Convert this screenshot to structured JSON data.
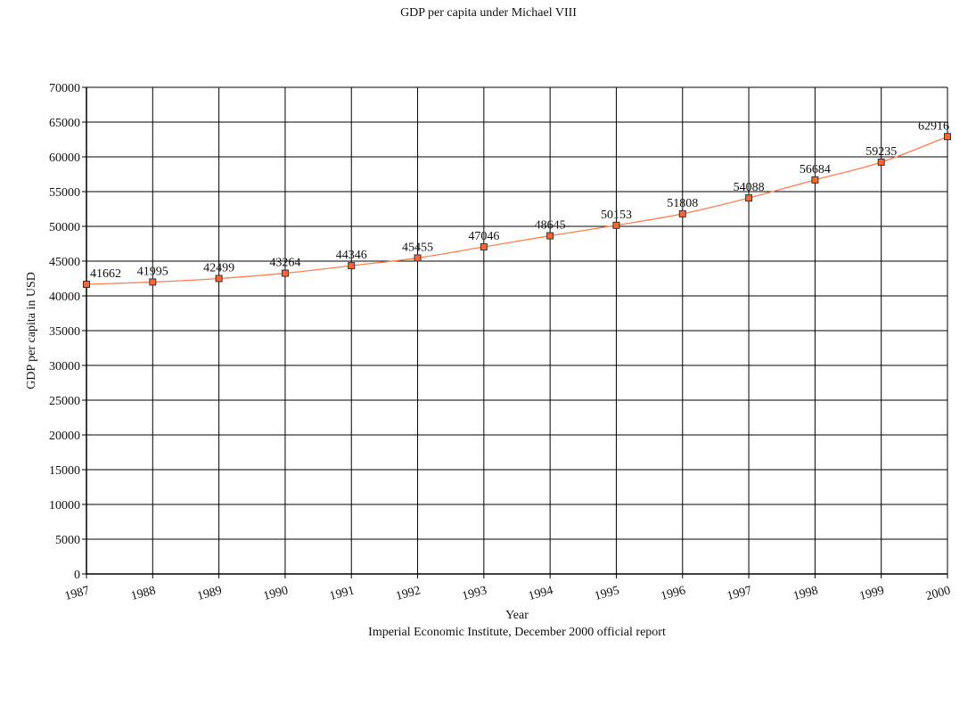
{
  "chart_data": {
    "type": "line",
    "title": "GDP per capita under Michael VIII",
    "xlabel": "Year",
    "ylabel": "GDP per capita in USD",
    "caption": "Imperial Economic Institute, December 2000 official report",
    "categories": [
      "1987",
      "1988",
      "1989",
      "1990",
      "1991",
      "1992",
      "1993",
      "1994",
      "1995",
      "1996",
      "1997",
      "1998",
      "1999",
      "2000"
    ],
    "series": [
      {
        "values": [
          41662,
          41995,
          42499,
          43264,
          44346,
          45455,
          47046,
          48645,
          50153,
          51808,
          54088,
          56684,
          59235,
          62916
        ],
        "color": "#ff7f50",
        "marker_fill": "#ff6633",
        "marker_stroke": "#333333"
      }
    ],
    "ylim": [
      0,
      70000
    ],
    "yticks": [
      0,
      5000,
      10000,
      15000,
      20000,
      25000,
      30000,
      35000,
      40000,
      45000,
      50000,
      55000,
      60000,
      65000,
      70000
    ],
    "grid": true,
    "legend": "none"
  }
}
